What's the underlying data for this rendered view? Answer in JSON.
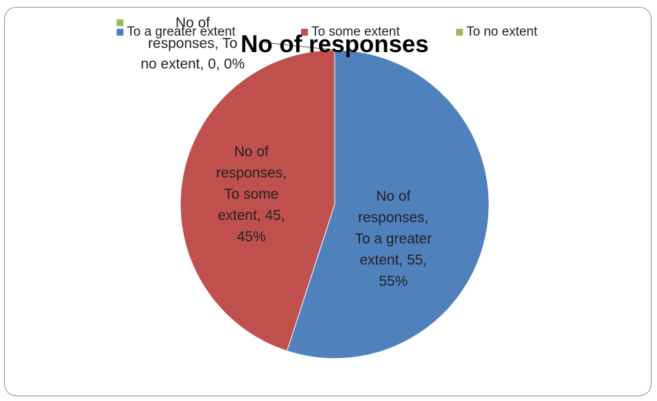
{
  "chart_data": {
    "type": "pie",
    "title": "No of responses",
    "series_name": "No of responses",
    "categories": [
      "To a greater extent",
      "To some extent",
      "To no extent"
    ],
    "values": [
      55,
      45,
      0
    ],
    "percent_labels": [
      "55%",
      "45%",
      "0%"
    ],
    "colors": [
      "#4f81bd",
      "#c0504d",
      "#9bbb59"
    ],
    "legend_position": "top",
    "data_labels": [
      [
        "No of",
        "responses,",
        "To a greater",
        "extent, 55,",
        "55%"
      ],
      [
        "No of",
        "responses,",
        "To some",
        "extent, 45,",
        "45%"
      ],
      [
        "No of",
        "responses, To",
        "no extent, 0, 0%"
      ]
    ]
  }
}
